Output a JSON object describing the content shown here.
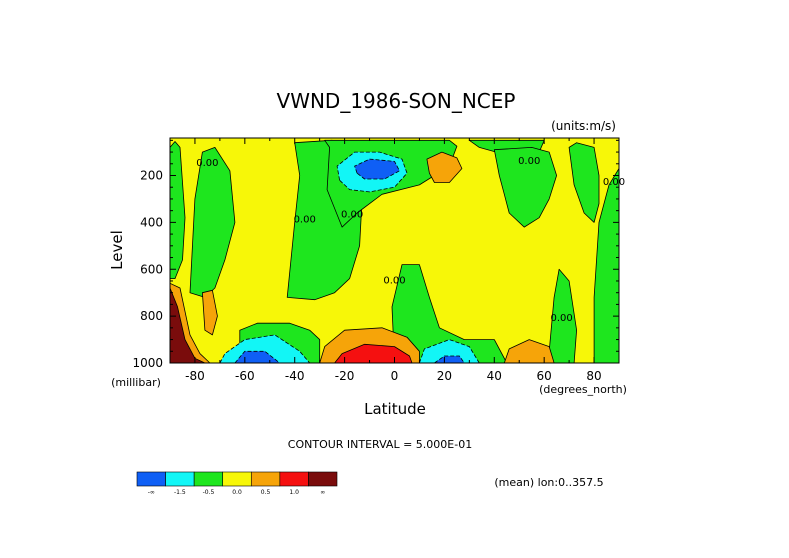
{
  "chart_data": {
    "type": "heatmap",
    "title": "VWND_1986-SON_NCEP",
    "units": "(units:m/s)",
    "xlabel": "Latitude",
    "xunits": "(degrees_north)",
    "ylabel": "Level",
    "yunits": "(millibar)",
    "xlim": [
      -90,
      90
    ],
    "ylim": [
      1000,
      40
    ],
    "y_inverted": true,
    "xticks": [
      -80,
      -60,
      -40,
      -20,
      0,
      20,
      40,
      60,
      80
    ],
    "xtick_labels": [
      "-80",
      "-60",
      "-40",
      "-20",
      "0",
      "20",
      "40",
      "60",
      "80"
    ],
    "yticks": [
      200,
      400,
      600,
      800,
      1000
    ],
    "ytick_labels": [
      "200",
      "400",
      "600",
      "800",
      "1000"
    ],
    "contour_interval_text": "CONTOUR INTERVAL = 5.000E-01",
    "footer_text": "(mean) lon:0..357.5",
    "contour_labels": [
      {
        "text": "0.00",
        "lat": -75,
        "lev": 160
      },
      {
        "text": "0.00",
        "lat": -36,
        "lev": 400
      },
      {
        "text": "0.00",
        "lat": -17,
        "lev": 380
      },
      {
        "text": "0.00",
        "lat": 0,
        "lev": 660
      },
      {
        "text": "0.00",
        "lat": 54,
        "lev": 150
      },
      {
        "text": "0.00",
        "lat": 67,
        "lev": 820
      },
      {
        "text": "0.00",
        "lat": 88,
        "lev": 240
      }
    ],
    "levels": [
      {
        "value": "-∞",
        "color": "#0f5ff5"
      },
      {
        "value": "-1.5",
        "color": "#12f6f6"
      },
      {
        "value": "-0.5",
        "color": "#1ee61e"
      },
      {
        "value": "0.0",
        "color": "#f7f708"
      },
      {
        "value": "0.5",
        "color": "#f6a409"
      },
      {
        "value": "1.0",
        "color": "#f51010"
      },
      {
        "value": "∞",
        "color": "#7a0c0c"
      }
    ],
    "colorbar_labels": [
      "-∞",
      "-1.5",
      "-0.5",
      "0.0",
      "0.5",
      "1.0",
      "∞"
    ],
    "features": [
      {
        "cat": "green",
        "poly": [
          [
            -90,
            80
          ],
          [
            -88,
            55
          ],
          [
            -86,
            80
          ],
          [
            -84,
            380
          ],
          [
            -85,
            560
          ],
          [
            -88,
            640
          ],
          [
            -90,
            640
          ]
        ]
      },
      {
        "cat": "green",
        "poly": [
          [
            -82,
            700
          ],
          [
            -80,
            300
          ],
          [
            -77,
            100
          ],
          [
            -72,
            80
          ],
          [
            -66,
            180
          ],
          [
            -64,
            400
          ],
          [
            -68,
            560
          ],
          [
            -72,
            680
          ],
          [
            -76,
            720
          ]
        ]
      },
      {
        "cat": "green",
        "poly": [
          [
            -62,
            1000
          ],
          [
            -62,
            860
          ],
          [
            -55,
            830
          ],
          [
            -42,
            830
          ],
          [
            -34,
            860
          ],
          [
            -30,
            900
          ],
          [
            -30,
            1000
          ]
        ]
      },
      {
        "cat": "green",
        "poly": [
          [
            -43,
            720
          ],
          [
            -40,
            400
          ],
          [
            -38,
            200
          ],
          [
            -40,
            60
          ],
          [
            -25,
            50
          ],
          [
            -18,
            150
          ],
          [
            -13,
            300
          ],
          [
            -14,
            500
          ],
          [
            -18,
            640
          ],
          [
            -24,
            700
          ],
          [
            -32,
            730
          ]
        ]
      },
      {
        "cat": "green",
        "poly": [
          [
            -28,
            50
          ],
          [
            -26,
            80
          ],
          [
            -27,
            260
          ],
          [
            -21,
            420
          ],
          [
            -15,
            360
          ],
          [
            -5,
            280
          ],
          [
            10,
            240
          ],
          [
            22,
            160
          ],
          [
            25,
            75
          ],
          [
            22,
            50
          ]
        ]
      },
      {
        "cat": "green",
        "poly": [
          [
            0,
            1000
          ],
          [
            -1,
            760
          ],
          [
            3,
            580
          ],
          [
            10,
            580
          ],
          [
            14,
            720
          ],
          [
            18,
            850
          ],
          [
            28,
            900
          ],
          [
            40,
            900
          ],
          [
            45,
            1000
          ]
        ]
      },
      {
        "cat": "green",
        "poly": [
          [
            30,
            50
          ],
          [
            45,
            50
          ],
          [
            60,
            50
          ],
          [
            58,
            100
          ],
          [
            44,
            110
          ],
          [
            34,
            80
          ]
        ]
      },
      {
        "cat": "green",
        "poly": [
          [
            42,
            200
          ],
          [
            40,
            90
          ],
          [
            55,
            80
          ],
          [
            62,
            100
          ],
          [
            65,
            200
          ],
          [
            62,
            300
          ],
          [
            58,
            380
          ],
          [
            52,
            420
          ],
          [
            46,
            360
          ],
          [
            44,
            280
          ]
        ]
      },
      {
        "cat": "green",
        "poly": [
          [
            55,
            1000
          ],
          [
            62,
            950
          ],
          [
            64,
            720
          ],
          [
            66,
            600
          ],
          [
            70,
            650
          ],
          [
            73,
            860
          ],
          [
            72,
            1000
          ]
        ]
      },
      {
        "cat": "green",
        "poly": [
          [
            70,
            80
          ],
          [
            73,
            60
          ],
          [
            80,
            80
          ],
          [
            82,
            200
          ],
          [
            82,
            320
          ],
          [
            80,
            400
          ],
          [
            76,
            360
          ],
          [
            72,
            240
          ]
        ]
      },
      {
        "cat": "green",
        "poly": [
          [
            80,
            1000
          ],
          [
            80,
            720
          ],
          [
            82,
            400
          ],
          [
            86,
            240
          ],
          [
            90,
            170
          ],
          [
            90,
            1000
          ]
        ]
      },
      {
        "cat": "cyan",
        "poly": [
          [
            -22,
            220
          ],
          [
            -23,
            160
          ],
          [
            -16,
            100
          ],
          [
            -6,
            100
          ],
          [
            3,
            130
          ],
          [
            5,
            190
          ],
          [
            0,
            250
          ],
          [
            -10,
            270
          ],
          [
            -18,
            260
          ]
        ]
      },
      {
        "cat": "blue",
        "poly": [
          [
            -15,
            190
          ],
          [
            -16,
            160
          ],
          [
            -10,
            130
          ],
          [
            0,
            140
          ],
          [
            2,
            180
          ],
          [
            -4,
            215
          ],
          [
            -12,
            215
          ]
        ]
      },
      {
        "cat": "orange",
        "poly": [
          [
            14,
            190
          ],
          [
            13,
            130
          ],
          [
            19,
            100
          ],
          [
            25,
            125
          ],
          [
            27,
            170
          ],
          [
            22,
            230
          ],
          [
            16,
            230
          ]
        ]
      },
      {
        "cat": "orange",
        "poly": [
          [
            -76,
            860
          ],
          [
            -77,
            700
          ],
          [
            -73,
            690
          ],
          [
            -71,
            800
          ],
          [
            -73,
            880
          ]
        ]
      },
      {
        "cat": "orange",
        "poly": [
          [
            -90,
            660
          ],
          [
            -86,
            680
          ],
          [
            -82,
            880
          ],
          [
            -78,
            960
          ],
          [
            -74,
            1000
          ],
          [
            -90,
            1000
          ]
        ]
      },
      {
        "cat": "darkred",
        "poly": [
          [
            -90,
            680
          ],
          [
            -87,
            760
          ],
          [
            -84,
            900
          ],
          [
            -80,
            980
          ],
          [
            -76,
            1000
          ],
          [
            -90,
            1000
          ]
        ]
      },
      {
        "cat": "cyan",
        "poly": [
          [
            -70,
            1000
          ],
          [
            -68,
            960
          ],
          [
            -60,
            900
          ],
          [
            -48,
            880
          ],
          [
            -38,
            950
          ],
          [
            -34,
            1000
          ]
        ]
      },
      {
        "cat": "blue",
        "poly": [
          [
            -64,
            1000
          ],
          [
            -60,
            950
          ],
          [
            -52,
            950
          ],
          [
            -46,
            1000
          ]
        ]
      },
      {
        "cat": "orange",
        "poly": [
          [
            -30,
            1000
          ],
          [
            -28,
            930
          ],
          [
            -20,
            860
          ],
          [
            -5,
            850
          ],
          [
            5,
            890
          ],
          [
            10,
            950
          ],
          [
            10,
            1000
          ]
        ]
      },
      {
        "cat": "red",
        "poly": [
          [
            -24,
            1000
          ],
          [
            -21,
            960
          ],
          [
            -12,
            920
          ],
          [
            0,
            930
          ],
          [
            6,
            970
          ],
          [
            7,
            1000
          ]
        ]
      },
      {
        "cat": "cyan",
        "poly": [
          [
            10,
            1000
          ],
          [
            12,
            940
          ],
          [
            22,
            900
          ],
          [
            30,
            930
          ],
          [
            34,
            1000
          ]
        ]
      },
      {
        "cat": "blue",
        "poly": [
          [
            16,
            1000
          ],
          [
            20,
            970
          ],
          [
            26,
            970
          ],
          [
            28,
            1000
          ]
        ]
      },
      {
        "cat": "orange",
        "poly": [
          [
            44,
            1000
          ],
          [
            46,
            940
          ],
          [
            54,
            900
          ],
          [
            62,
            930
          ],
          [
            64,
            1000
          ]
        ]
      }
    ]
  }
}
